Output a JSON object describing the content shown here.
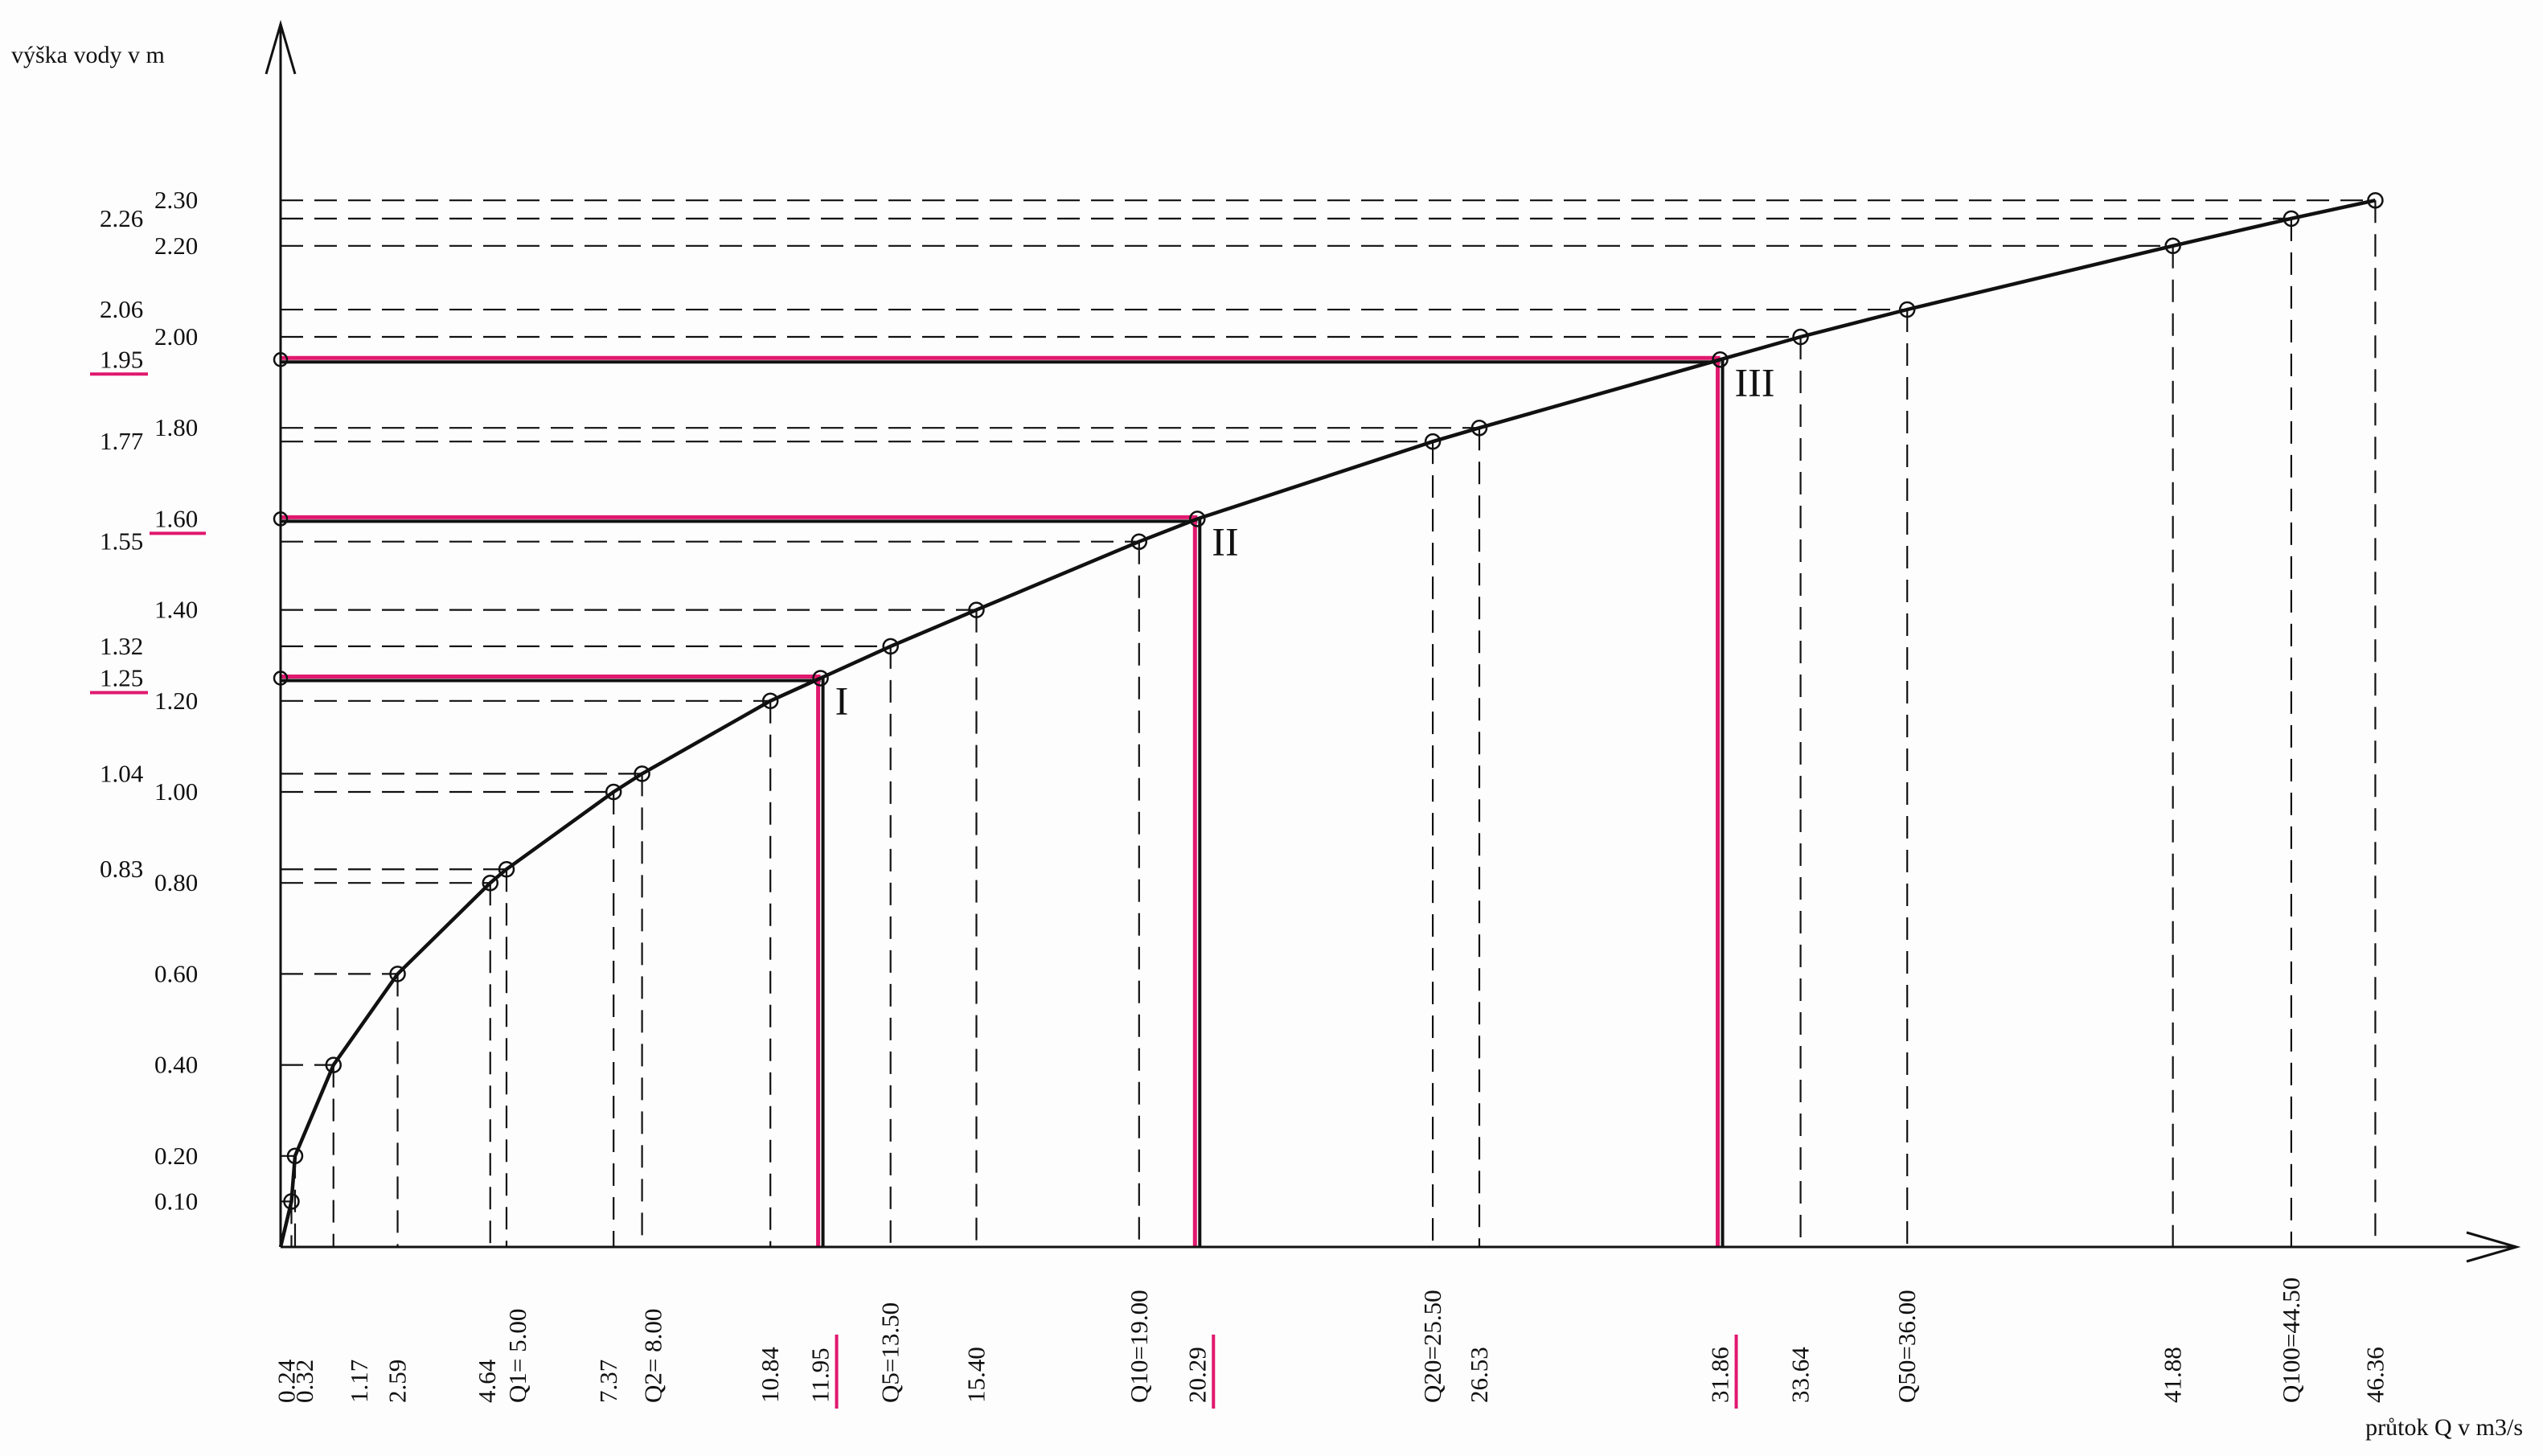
{
  "chart_data": {
    "type": "line",
    "title": "",
    "xlabel": "průtok Q v m3/s",
    "ylabel": "výška vody v m",
    "xlim": [
      0,
      49
    ],
    "ylim": [
      0,
      2.6
    ],
    "colors": {
      "curve": "#111111",
      "guides": "#111111",
      "highlight": "#e0186e"
    },
    "curve": {
      "x": [
        0,
        0.24,
        0.32,
        1.17,
        2.59,
        4.64,
        5.0,
        7.37,
        8.0,
        10.84,
        11.95,
        13.5,
        15.4,
        19.0,
        20.29,
        25.5,
        26.53,
        31.86,
        33.64,
        36.0,
        41.88,
        44.5,
        46.36
      ],
      "y": [
        0,
        0.1,
        0.2,
        0.4,
        0.6,
        0.8,
        0.83,
        1.0,
        1.04,
        1.2,
        1.25,
        1.32,
        1.4,
        1.55,
        1.6,
        1.77,
        1.8,
        1.95,
        2.0,
        2.06,
        2.2,
        2.26,
        2.3
      ]
    },
    "y_ticks_right": [
      {
        "y": 2.3,
        "label": "2.30"
      },
      {
        "y": 2.2,
        "label": "2.20"
      },
      {
        "y": 2.0,
        "label": "2.00"
      },
      {
        "y": 1.8,
        "label": "1.80"
      },
      {
        "y": 1.6,
        "label": "1.60"
      },
      {
        "y": 1.4,
        "label": "1.40"
      },
      {
        "y": 1.2,
        "label": "1.20"
      },
      {
        "y": 1.0,
        "label": "1.00"
      },
      {
        "y": 0.8,
        "label": "0.80"
      },
      {
        "y": 0.6,
        "label": "0.60"
      },
      {
        "y": 0.4,
        "label": "0.40"
      },
      {
        "y": 0.2,
        "label": "0.20"
      },
      {
        "y": 0.1,
        "label": "0.10"
      }
    ],
    "y_ticks_left": [
      {
        "y": 2.26,
        "label": "2.26"
      },
      {
        "y": 2.06,
        "label": "2.06"
      },
      {
        "y": 1.95,
        "label": "1.95"
      },
      {
        "y": 1.77,
        "label": "1.77"
      },
      {
        "y": 1.55,
        "label": "1.55"
      },
      {
        "y": 1.32,
        "label": "1.32"
      },
      {
        "y": 1.25,
        "label": "1.25"
      },
      {
        "y": 1.04,
        "label": "1.04"
      },
      {
        "y": 0.83,
        "label": "0.83"
      }
    ],
    "x_ticks": [
      {
        "x": 0.24,
        "label": "0.24"
      },
      {
        "x": 0.32,
        "label": "0.32"
      },
      {
        "x": 1.17,
        "label": "1.17"
      },
      {
        "x": 2.59,
        "label": "2.59"
      },
      {
        "x": 4.64,
        "label": "4.64"
      },
      {
        "x": 5.0,
        "label": "Q1= 5.00"
      },
      {
        "x": 7.37,
        "label": "7.37"
      },
      {
        "x": 8.0,
        "label": "Q2= 8.00"
      },
      {
        "x": 10.84,
        "label": "10.84"
      },
      {
        "x": 11.95,
        "label": "11.95"
      },
      {
        "x": 13.5,
        "label": "Q5=13.50"
      },
      {
        "x": 15.4,
        "label": "15.40"
      },
      {
        "x": 19.0,
        "label": "Q10=19.00"
      },
      {
        "x": 20.29,
        "label": "20.29"
      },
      {
        "x": 25.5,
        "label": "Q20=25.50"
      },
      {
        "x": 26.53,
        "label": "26.53"
      },
      {
        "x": 31.86,
        "label": "31.86"
      },
      {
        "x": 33.64,
        "label": "33.64"
      },
      {
        "x": 36.0,
        "label": "Q50=36.00"
      },
      {
        "x": 41.88,
        "label": "41.88"
      },
      {
        "x": 44.5,
        "label": "Q100=44.50"
      },
      {
        "x": 46.36,
        "label": "46.36"
      }
    ],
    "highlights": [
      {
        "name": "I",
        "x": 11.95,
        "y": 1.25
      },
      {
        "name": "II",
        "x": 20.29,
        "y": 1.6
      },
      {
        "name": "III",
        "x": 31.86,
        "y": 1.95
      }
    ],
    "highlight_labels": [
      "1.95",
      "1.60",
      "1.25",
      "11.95",
      "20.29",
      "31.86"
    ]
  }
}
